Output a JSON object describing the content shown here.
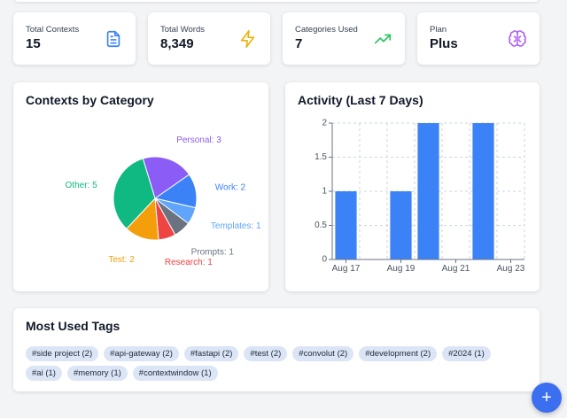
{
  "stats": [
    {
      "label": "Total Contexts",
      "value": "15",
      "icon": "document-icon",
      "color": "#3b82f6"
    },
    {
      "label": "Total Words",
      "value": "8,349",
      "icon": "lightning-icon",
      "color": "#eab308"
    },
    {
      "label": "Categories Used",
      "value": "7",
      "icon": "trending-up-icon",
      "color": "#22c55e"
    },
    {
      "label": "Plan",
      "value": "Plus",
      "icon": "brain-icon",
      "color": "#a855f7"
    }
  ],
  "category_chart": {
    "title": "Contexts by Category",
    "chart_data": {
      "type": "pie",
      "title": "Contexts by Category",
      "slices": [
        {
          "name": "Personal",
          "value": 3,
          "color": "#8b5cf6",
          "label": "Personal: 3"
        },
        {
          "name": "Work",
          "value": 2,
          "color": "#3b82f6",
          "label": "Work: 2"
        },
        {
          "name": "Templates",
          "value": 1,
          "color": "#60a5fa",
          "label": "Templates: 1"
        },
        {
          "name": "Prompts",
          "value": 1,
          "color": "#6b7280",
          "label": "Prompts: 1"
        },
        {
          "name": "Research",
          "value": 1,
          "color": "#ef4444",
          "label": "Research: 1"
        },
        {
          "name": "Test",
          "value": 2,
          "color": "#f59e0b",
          "label": "Test: 2"
        },
        {
          "name": "Other",
          "value": 5,
          "color": "#10b981",
          "label": "Other: 5"
        }
      ]
    }
  },
  "activity_chart": {
    "title": "Activity (Last 7 Days)",
    "chart_data": {
      "type": "bar",
      "title": "Activity (Last 7 Days)",
      "x": [
        "Aug 17",
        "Aug 18",
        "Aug 19",
        "Aug 20",
        "Aug 21",
        "Aug 22",
        "Aug 23"
      ],
      "values": [
        1,
        0,
        1,
        2,
        0,
        2,
        0
      ],
      "x_tick_labels": [
        "Aug 17",
        "Aug 19",
        "Aug 21",
        "Aug 23"
      ],
      "y_ticks": [
        "0",
        "0.5",
        "1",
        "1.5",
        "2"
      ],
      "ylim": [
        0,
        2
      ],
      "color": "#3b82f6",
      "grid": true
    }
  },
  "tags_section": {
    "title": "Most Used Tags",
    "tags": [
      "#side project (2)",
      "#api-gateway (2)",
      "#fastapi (2)",
      "#test (2)",
      "#convolut (2)",
      "#development (2)",
      "#2024 (1)",
      "#ai (1)",
      "#memory (1)",
      "#contextwindow (1)"
    ]
  },
  "fab": {
    "label": "+"
  }
}
